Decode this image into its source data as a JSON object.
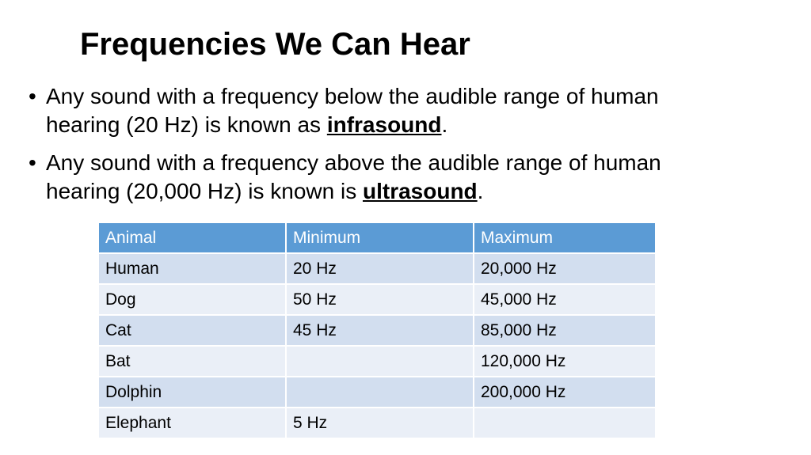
{
  "slide": {
    "title": "Frequencies We Can Hear",
    "bullets": [
      {
        "mark": "•",
        "line1": "Any sound with a frequency below the audible range of human",
        "pre": "hearing (20 Hz) is known as ",
        "term": "infrasound",
        "post": "."
      },
      {
        "mark": "•",
        "line1": "Any sound with a frequency above the audible range of human",
        "pre": "hearing (20,000 Hz) is known is ",
        "term": "ultrasound",
        "post": "."
      }
    ]
  },
  "table": {
    "columns": [
      "Animal",
      "Minimum",
      "Maximum"
    ],
    "rows": [
      [
        "Human",
        "20 Hz",
        "20,000 Hz"
      ],
      [
        "Dog",
        "50 Hz",
        "45,000 Hz"
      ],
      [
        "Cat",
        "45 Hz",
        "85,000 Hz"
      ],
      [
        "Bat",
        "",
        "120,000 Hz"
      ],
      [
        "Dolphin",
        "",
        "200,000 Hz"
      ],
      [
        "Elephant",
        "5 Hz",
        ""
      ]
    ]
  },
  "colors": {
    "header_bg": "#5b9bd5",
    "row_odd_bg": "#d2deef",
    "row_even_bg": "#eaeff7"
  }
}
